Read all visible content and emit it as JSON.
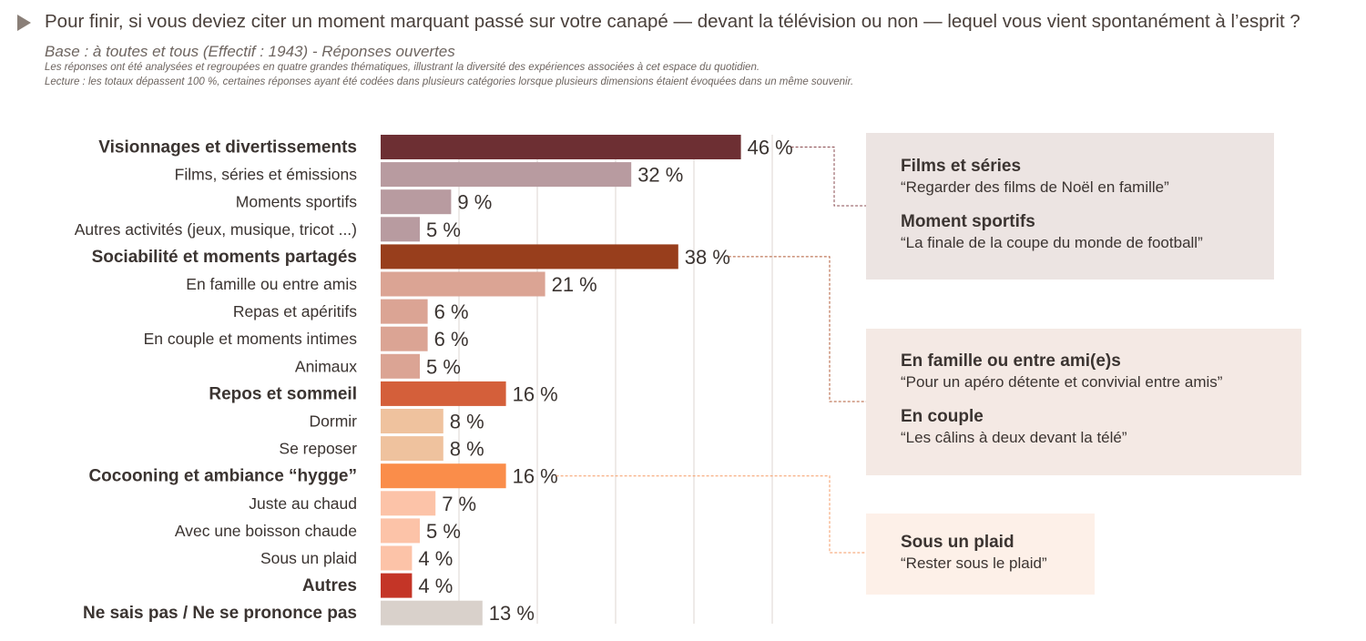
{
  "header": {
    "title": "Pour finir, si vous deviez citer un moment marquant passé sur votre canapé — devant la télévision ou non — lequel vous vient spontanément à l’esprit ?",
    "base": "Base : à toutes et tous (Effectif : 1943) - Réponses ouvertes",
    "note1": "Les réponses ont été analysées et regroupées en quatre grandes thématiques, illustrant la diversité des expériences associées à cet espace du quotidien.",
    "note2": "Lecture : les totaux dépassent 100 %, certaines réponses ayant été codées dans plusieurs catégories lorsque plusieurs dimensions étaient évoquées dans un même souvenir."
  },
  "chart_data": {
    "type": "bar",
    "orientation": "horizontal",
    "unit": "%",
    "xlim": [
      0,
      50
    ],
    "grid": true,
    "categories": [
      "Visionnages et divertissements",
      "Films, séries et émissions",
      "Moments sportifs",
      "Autres activités (jeux, musique, tricot ...)",
      "Sociabilité et moments partagés",
      "En famille ou entre amis",
      "Repas et apéritifs",
      "En couple et moments intimes",
      "Animaux",
      "Repos et sommeil",
      "Dormir",
      "Se reposer",
      "Cocooning et ambiance “hygge”",
      "Juste au chaud",
      "Avec une boisson chaude",
      "Sous un plaid",
      "Autres",
      "Ne sais pas / Ne se prononce pas"
    ],
    "values": [
      46,
      32,
      9,
      5,
      38,
      21,
      6,
      6,
      5,
      16,
      8,
      8,
      16,
      7,
      5,
      4,
      4,
      13
    ],
    "value_labels": [
      "46 %",
      "32 %",
      "9 %",
      "5 %",
      "38 %",
      "21 %",
      "6 %",
      "6 %",
      "5 %",
      "16 %",
      "8 %",
      "8 %",
      "16 %",
      "7 %",
      "5 %",
      "4 %",
      "4 %",
      "13 %"
    ],
    "bold": [
      true,
      false,
      false,
      false,
      true,
      false,
      false,
      false,
      false,
      true,
      false,
      false,
      true,
      false,
      false,
      false,
      true,
      true
    ],
    "colors": [
      "#6d2f33",
      "#b89ba0",
      "#b89ba0",
      "#b89ba0",
      "#983e1c",
      "#dba494",
      "#dba494",
      "#dba494",
      "#dba494",
      "#d45f3a",
      "#efc29e",
      "#efc29e",
      "#fa8d4a",
      "#fcc3a8",
      "#fcc3a8",
      "#fcc3a8",
      "#c43527",
      "#d9d1cb"
    ]
  },
  "callouts": [
    {
      "bg": "#ece4e2",
      "line_color": "#8a4b50",
      "items": [
        {
          "head": "Films et séries",
          "quote": "“Regarder des films de Noël en famille”"
        },
        {
          "head": "Moment sportifs",
          "quote": "“La finale de la coupe du monde de football”"
        }
      ]
    },
    {
      "bg": "#f4e9e4",
      "line_color": "#b15a35",
      "items": [
        {
          "head": "En famille ou entre ami(e)s",
          "quote": "“Pour un apéro détente et convivial entre amis”"
        },
        {
          "head": "En couple",
          "quote": "“Les câlins à deux devant la télé”"
        }
      ]
    },
    {
      "bg": "#fdf0e8",
      "line_color": "#f59a63",
      "items": [
        {
          "head": "Sous un plaid",
          "quote": "“Rester sous le plaid”"
        }
      ]
    }
  ]
}
